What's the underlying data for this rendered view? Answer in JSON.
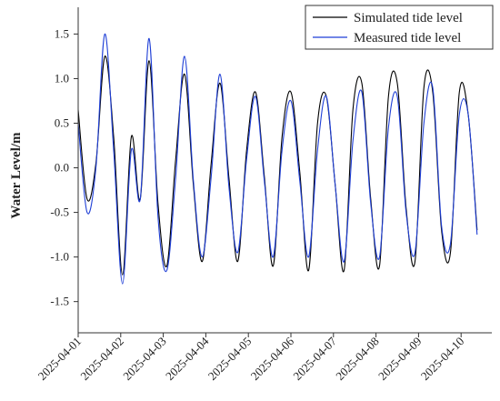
{
  "chart_data": {
    "type": "line",
    "xlabel": "",
    "ylabel": "Water Level/m",
    "x_ticks": [
      "2025-04-01",
      "2025-04-02",
      "2025-04-03",
      "2025-04-04",
      "2025-04-05",
      "2025-04-06",
      "2025-04-07",
      "2025-04-08",
      "2025-04-09",
      "2025-04-10"
    ],
    "xlim": [
      "2025-04-01 00:00",
      "2025-04-10 22:00"
    ],
    "ylim": [
      -1.85,
      1.8
    ],
    "y_ticks": [
      -1.5,
      -1.0,
      -0.5,
      0.0,
      0.5,
      1.0,
      1.5
    ],
    "legend_position": "top-right",
    "x_interval_hours": 2,
    "series": [
      {
        "name": "Simulated tide level",
        "color": "#000000",
        "values": [
          0.65,
          -0.35,
          0.05,
          1.25,
          0.35,
          -1.2,
          0.35,
          -0.35,
          1.2,
          -0.4,
          -1.1,
          0.1,
          1.05,
          -0.2,
          -1.05,
          0.05,
          0.95,
          -0.1,
          -1.05,
          0.2,
          0.85,
          -0.1,
          -1.1,
          0.35,
          0.85,
          -0.05,
          -1.15,
          0.5,
          0.8,
          -0.2,
          -1.15,
          0.65,
          0.95,
          -0.35,
          -1.1,
          0.8,
          0.95,
          -0.45,
          -1.05,
          0.9,
          0.85,
          -0.7,
          -0.95,
          0.85,
          0.6,
          -0.7
        ]
      },
      {
        "name": "Measured tide level",
        "color": "#1f3fd6",
        "values": [
          0.5,
          -0.5,
          0.0,
          1.5,
          0.2,
          -1.3,
          0.2,
          -0.35,
          1.45,
          -0.55,
          -1.15,
          -0.1,
          1.25,
          -0.15,
          -1.0,
          -0.1,
          1.05,
          -0.2,
          -0.95,
          0.1,
          0.8,
          -0.15,
          -1.0,
          0.2,
          0.75,
          -0.15,
          -1.0,
          0.2,
          0.8,
          -0.2,
          -1.05,
          0.3,
          0.85,
          -0.4,
          -1.0,
          0.45,
          0.8,
          -0.5,
          -0.95,
          0.5,
          0.9,
          -0.65,
          -0.85,
          0.6,
          0.6,
          -0.75
        ]
      }
    ]
  }
}
